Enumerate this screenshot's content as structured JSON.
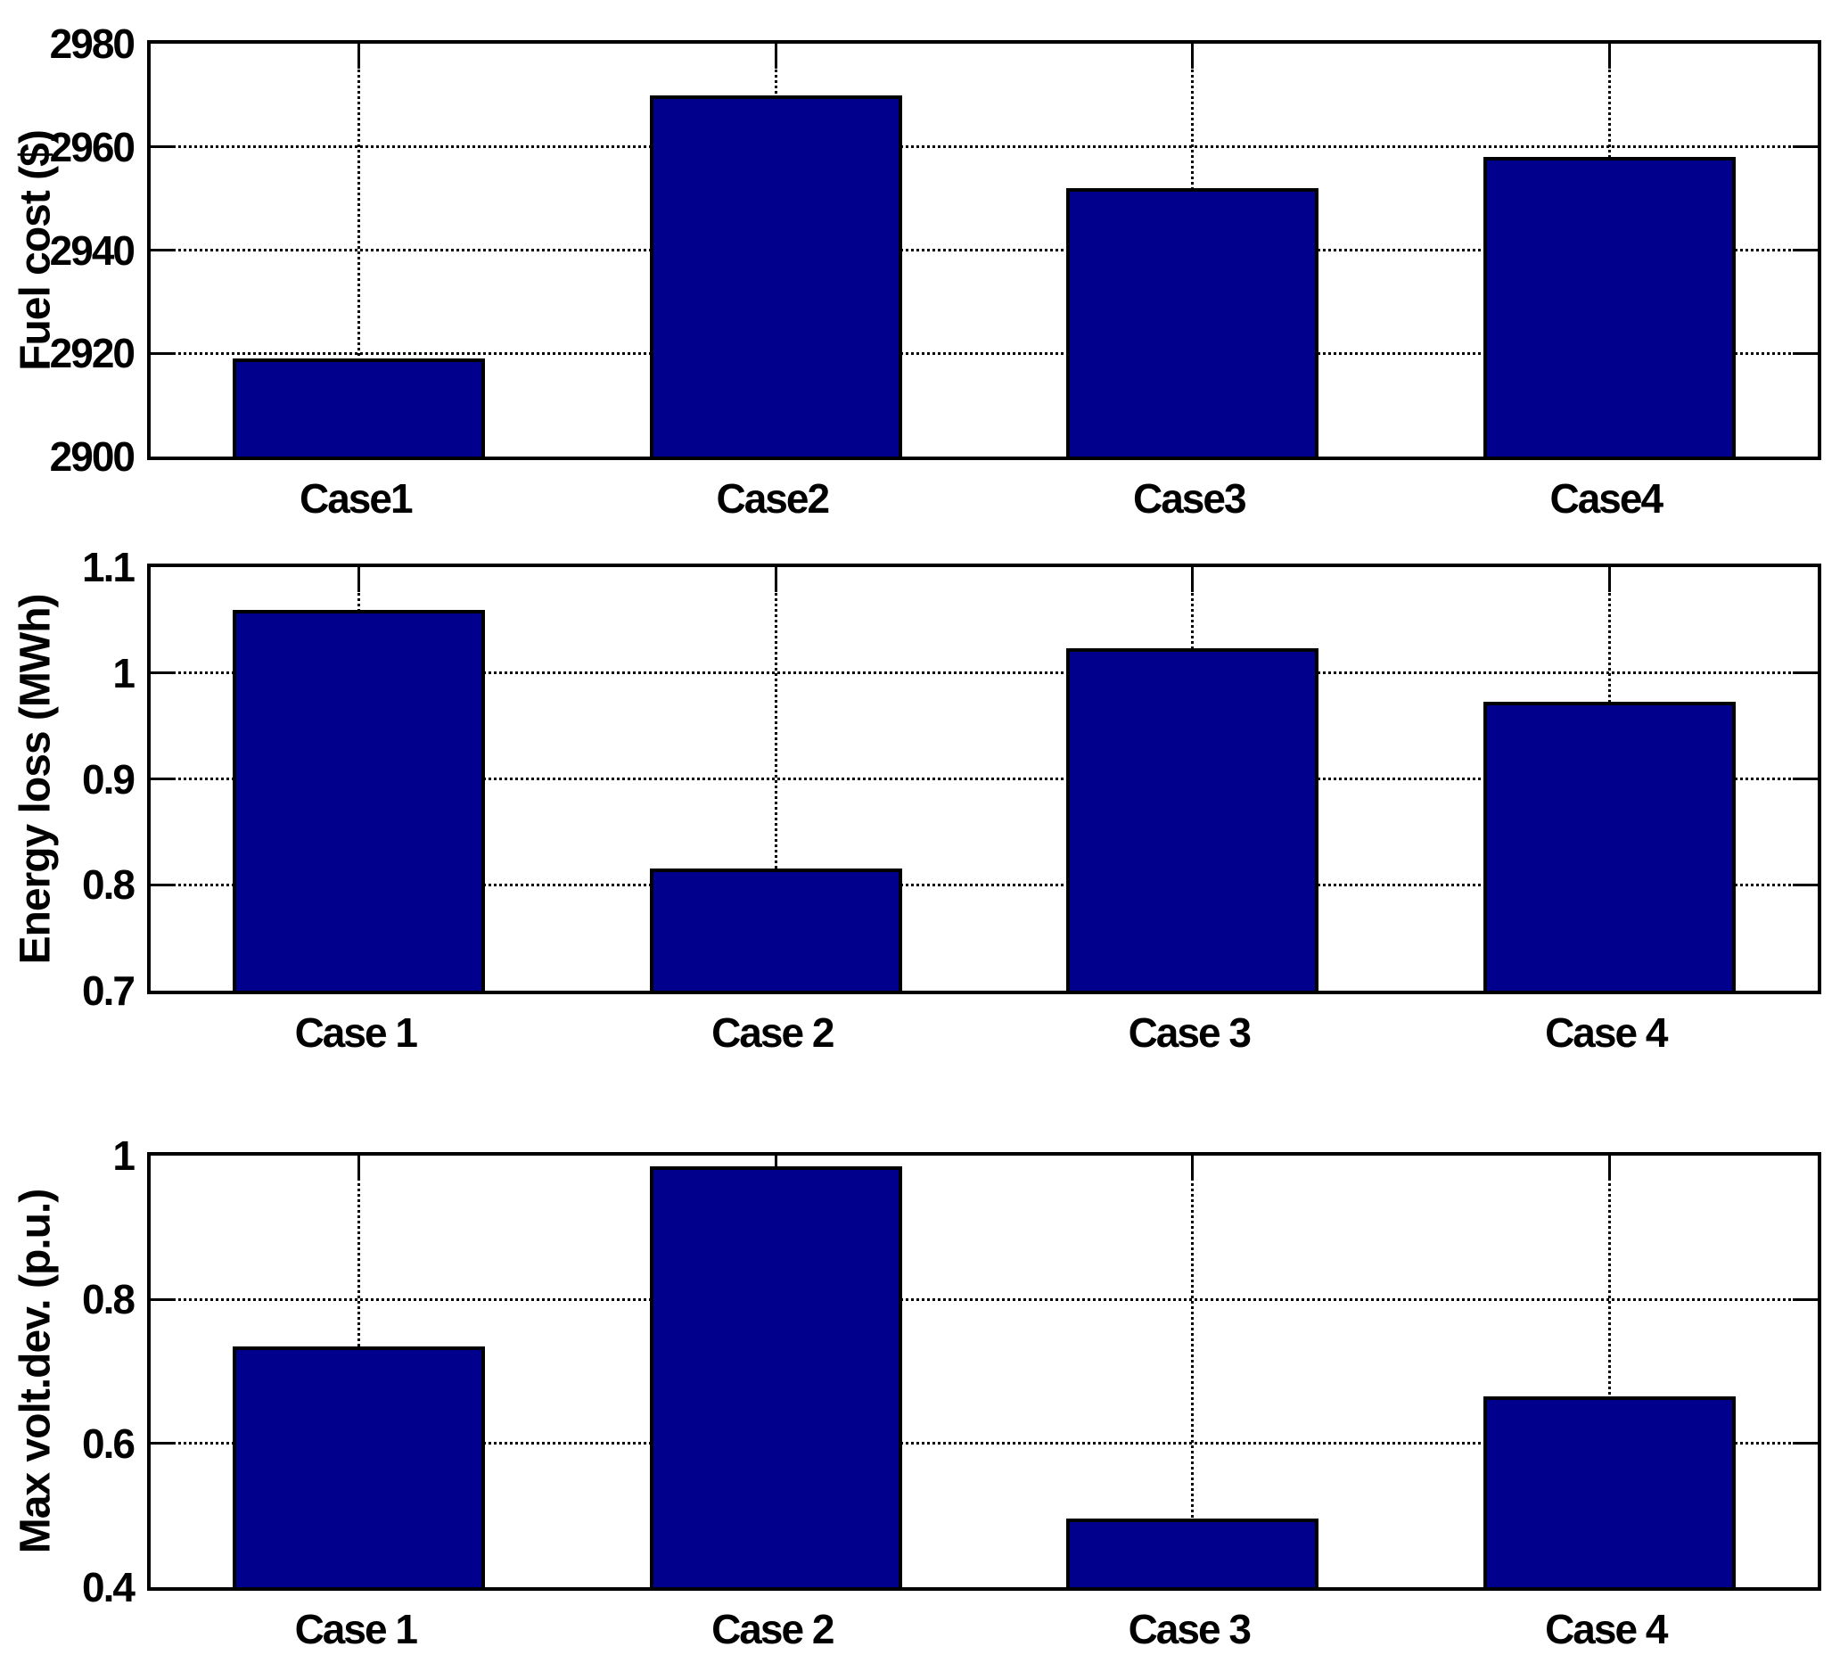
{
  "figure": {
    "background": "#ffffff",
    "bar_color": "#00008C",
    "bar_edge_color": "#000000",
    "grid_style": "dotted"
  },
  "chart_data": [
    {
      "type": "bar",
      "ylabel": "Fuel cost ($)",
      "categories": [
        "Case1",
        "Case2",
        "Case3",
        "Case4"
      ],
      "values": [
        2919,
        2970,
        2952,
        2958
      ],
      "ylim": [
        2900,
        2980
      ],
      "yticks": [
        2900,
        2920,
        2940,
        2960,
        2980
      ],
      "ytick_labels": [
        "2900",
        "2920",
        "2940",
        "2960",
        "2980"
      ],
      "grid": "on",
      "legend": "none"
    },
    {
      "type": "bar",
      "ylabel": "Energy loss (MWh)",
      "categories": [
        "Case 1",
        "Case 2",
        "Case 3",
        "Case 4"
      ],
      "values": [
        1.06,
        0.815,
        1.023,
        0.973
      ],
      "ylim": [
        0.7,
        1.1
      ],
      "yticks": [
        0.7,
        0.8,
        0.9,
        1,
        1.1
      ],
      "ytick_labels": [
        "0.7",
        "0.8",
        "0.9",
        "1",
        "1.1"
      ],
      "grid": "on",
      "legend": "none"
    },
    {
      "type": "bar",
      "ylabel": "Max volt.dev. (p.u.)",
      "categories": [
        "Case 1",
        "Case 2",
        "Case 3",
        "Case 4"
      ],
      "values": [
        0.735,
        0.985,
        0.495,
        0.665
      ],
      "ylim": [
        0.4,
        1.0
      ],
      "yticks": [
        0.4,
        0.6,
        0.8,
        1
      ],
      "ytick_labels": [
        "0.4",
        "0.6",
        "0.8",
        "1"
      ],
      "grid": "on",
      "legend": "none"
    }
  ]
}
